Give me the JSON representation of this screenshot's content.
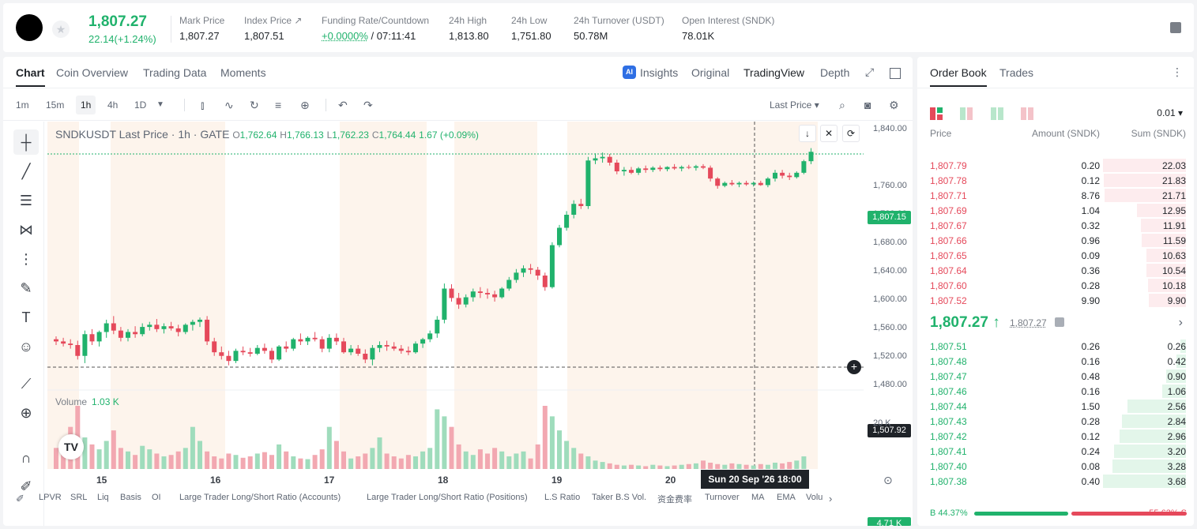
{
  "header": {
    "price": "1,807.27",
    "change": "22.14(+1.24%)",
    "stats": [
      {
        "label": "Mark Price",
        "value": "1,807.27"
      },
      {
        "label": "Index Price ↗",
        "value": "1,807.51"
      },
      {
        "label": "Funding Rate/Countdown",
        "value_green": "+0.0000%",
        "value": "/ 07:11:41"
      },
      {
        "label": "24h High",
        "value": "1,813.80"
      },
      {
        "label": "24h Low",
        "value": "1,751.80"
      },
      {
        "label": "24h Turnover (USDT)",
        "value": "50.78M"
      },
      {
        "label": "Open Interest (SNDK)",
        "value": "78.01K"
      }
    ]
  },
  "chart_tabs": [
    "Chart",
    "Coin Overview",
    "Trading Data",
    "Moments"
  ],
  "chart_views": {
    "insights": "Insights",
    "original": "Original",
    "tradingview": "TradingView",
    "depth": "Depth"
  },
  "timeframes": [
    "1m",
    "15m",
    "1h",
    "4h",
    "1D"
  ],
  "price_type": "Last Price",
  "legend": {
    "title": "SNDKUSDT Last Price · 1h · GATE",
    "o_label": "O",
    "o": "1,762.64",
    "h_label": "H",
    "h": "1,766.13",
    "l_label": "L",
    "l": "1,762.23",
    "c_label": "C",
    "c": "1,764.44",
    "chg": "1.67 (+0.09%)"
  },
  "volume_legend": {
    "label": "Volume",
    "value": "1.03 K"
  },
  "y_ticks": [
    "1,840.00",
    "1,760.00",
    "1,720.00",
    "1,680.00",
    "1,640.00",
    "1,600.00",
    "1,560.00",
    "1,520.00",
    "1,480.00"
  ],
  "y_last": "1,807.15",
  "y_cross": "1,507.92",
  "vol_ticks": [
    "20 K"
  ],
  "vol_last": "4.71 K",
  "x_ticks": [
    "15",
    "16",
    "17",
    "18",
    "19",
    "20"
  ],
  "x_cross": "Sun 20 Sep '26    18:00",
  "indicators": [
    "LPVR",
    "SRL",
    "Liq",
    "Basis",
    "OI",
    "Large Trader Long/Short Ratio (Accounts)",
    "Large Trader Long/Short Ratio (Positions)",
    "L.S Ratio",
    "Taker B.S Vol.",
    "资金费率",
    "Turnover",
    "MA",
    "EMA",
    "Volu"
  ],
  "chart_data": {
    "type": "candlestick",
    "series_name": "SNDKUSDT",
    "ylim": [
      1480,
      1840
    ],
    "x_ticks": [
      "15",
      "16",
      "17",
      "18",
      "19",
      "20"
    ],
    "candles": [
      [
        1548,
        1552,
        1540,
        1545
      ],
      [
        1545,
        1550,
        1538,
        1542
      ],
      [
        1542,
        1548,
        1535,
        1540
      ],
      [
        1540,
        1546,
        1520,
        1525
      ],
      [
        1525,
        1560,
        1515,
        1555
      ],
      [
        1555,
        1562,
        1540,
        1545
      ],
      [
        1545,
        1560,
        1538,
        1558
      ],
      [
        1558,
        1575,
        1550,
        1570
      ],
      [
        1570,
        1580,
        1555,
        1560
      ],
      [
        1560,
        1565,
        1545,
        1550
      ],
      [
        1550,
        1562,
        1545,
        1558
      ],
      [
        1558,
        1566,
        1550,
        1555
      ],
      [
        1555,
        1570,
        1552,
        1565
      ],
      [
        1565,
        1572,
        1560,
        1568
      ],
      [
        1568,
        1576,
        1558,
        1562
      ],
      [
        1562,
        1570,
        1556,
        1566
      ],
      [
        1566,
        1572,
        1560,
        1563
      ],
      [
        1563,
        1568,
        1552,
        1558
      ],
      [
        1558,
        1570,
        1555,
        1568
      ],
      [
        1568,
        1575,
        1560,
        1572
      ],
      [
        1572,
        1578,
        1565,
        1575
      ],
      [
        1575,
        1580,
        1540,
        1545
      ],
      [
        1545,
        1550,
        1525,
        1530
      ],
      [
        1530,
        1538,
        1520,
        1525
      ],
      [
        1525,
        1532,
        1512,
        1518
      ],
      [
        1518,
        1535,
        1515,
        1532
      ],
      [
        1532,
        1538,
        1526,
        1530
      ],
      [
        1530,
        1536,
        1524,
        1528
      ],
      [
        1528,
        1540,
        1526,
        1536
      ],
      [
        1536,
        1542,
        1528,
        1532
      ],
      [
        1532,
        1536,
        1515,
        1520
      ],
      [
        1520,
        1540,
        1518,
        1538
      ],
      [
        1538,
        1545,
        1530,
        1535
      ],
      [
        1535,
        1550,
        1532,
        1548
      ],
      [
        1548,
        1556,
        1540,
        1545
      ],
      [
        1545,
        1552,
        1540,
        1550
      ],
      [
        1550,
        1558,
        1545,
        1548
      ],
      [
        1548,
        1552,
        1530,
        1535
      ],
      [
        1535,
        1555,
        1530,
        1550
      ],
      [
        1550,
        1556,
        1540,
        1545
      ],
      [
        1545,
        1550,
        1528,
        1530
      ],
      [
        1530,
        1540,
        1526,
        1535
      ],
      [
        1535,
        1540,
        1525,
        1528
      ],
      [
        1528,
        1534,
        1515,
        1520
      ],
      [
        1520,
        1540,
        1512,
        1536
      ],
      [
        1536,
        1545,
        1530,
        1540
      ],
      [
        1540,
        1546,
        1532,
        1538
      ],
      [
        1538,
        1544,
        1532,
        1535
      ],
      [
        1535,
        1540,
        1528,
        1532
      ],
      [
        1532,
        1538,
        1526,
        1530
      ],
      [
        1530,
        1545,
        1528,
        1542
      ],
      [
        1542,
        1550,
        1536,
        1548
      ],
      [
        1548,
        1560,
        1544,
        1556
      ],
      [
        1556,
        1580,
        1550,
        1575
      ],
      [
        1575,
        1625,
        1570,
        1618
      ],
      [
        1618,
        1624,
        1600,
        1605
      ],
      [
        1605,
        1612,
        1590,
        1596
      ],
      [
        1596,
        1610,
        1592,
        1606
      ],
      [
        1606,
        1618,
        1600,
        1614
      ],
      [
        1614,
        1620,
        1605,
        1612
      ],
      [
        1612,
        1618,
        1604,
        1610
      ],
      [
        1610,
        1615,
        1600,
        1606
      ],
      [
        1606,
        1620,
        1604,
        1618
      ],
      [
        1618,
        1634,
        1615,
        1630
      ],
      [
        1630,
        1645,
        1626,
        1640
      ],
      [
        1640,
        1650,
        1634,
        1646
      ],
      [
        1646,
        1652,
        1638,
        1644
      ],
      [
        1644,
        1648,
        1630,
        1636
      ],
      [
        1636,
        1640,
        1615,
        1620
      ],
      [
        1620,
        1682,
        1618,
        1678
      ],
      [
        1678,
        1706,
        1675,
        1702
      ],
      [
        1702,
        1725,
        1698,
        1720
      ],
      [
        1720,
        1740,
        1715,
        1735
      ],
      [
        1735,
        1742,
        1728,
        1732
      ],
      [
        1732,
        1800,
        1728,
        1795
      ],
      [
        1795,
        1805,
        1790,
        1798
      ],
      [
        1798,
        1806,
        1792,
        1800
      ],
      [
        1800,
        1804,
        1788,
        1792
      ],
      [
        1792,
        1796,
        1776,
        1780
      ],
      [
        1780,
        1786,
        1774,
        1782
      ],
      [
        1782,
        1786,
        1776,
        1778
      ],
      [
        1778,
        1786,
        1775,
        1784
      ],
      [
        1784,
        1788,
        1778,
        1782
      ],
      [
        1782,
        1787,
        1779,
        1785
      ],
      [
        1785,
        1788,
        1780,
        1783
      ],
      [
        1783,
        1787,
        1780,
        1786
      ],
      [
        1786,
        1790,
        1782,
        1784
      ],
      [
        1784,
        1788,
        1780,
        1786
      ],
      [
        1786,
        1789,
        1783,
        1785
      ],
      [
        1785,
        1789,
        1781,
        1787
      ],
      [
        1787,
        1790,
        1783,
        1785
      ],
      [
        1785,
        1788,
        1766,
        1770
      ],
      [
        1770,
        1772,
        1756,
        1760
      ],
      [
        1760,
        1766,
        1758,
        1764
      ],
      [
        1764,
        1768,
        1760,
        1762
      ],
      [
        1762,
        1766,
        1758,
        1764
      ],
      [
        1764,
        1767,
        1760,
        1762
      ],
      [
        1762,
        1766,
        1759,
        1764
      ],
      [
        1764,
        1767,
        1760,
        1761
      ],
      [
        1761,
        1772,
        1758,
        1770
      ],
      [
        1770,
        1782,
        1766,
        1778
      ],
      [
        1778,
        1782,
        1770,
        1774
      ],
      [
        1774,
        1778,
        1768,
        1772
      ],
      [
        1772,
        1780,
        1770,
        1778
      ],
      [
        1778,
        1796,
        1776,
        1794
      ],
      [
        1794,
        1812,
        1790,
        1807
      ]
    ],
    "volumes": [
      30,
      22,
      60,
      90,
      45,
      35,
      28,
      40,
      55,
      30,
      25,
      20,
      33,
      28,
      22,
      18,
      20,
      25,
      30,
      60,
      40,
      25,
      18,
      15,
      22,
      20,
      16,
      18,
      22,
      24,
      20,
      35,
      25,
      18,
      15,
      14,
      20,
      28,
      60,
      40,
      25,
      15,
      18,
      22,
      30,
      45,
      22,
      18,
      15,
      20,
      18,
      25,
      30,
      85,
      75,
      60,
      35,
      25,
      20,
      28,
      22,
      30,
      25,
      18,
      22,
      25,
      15,
      35,
      90,
      75,
      55,
      40,
      30,
      22,
      18,
      12,
      10,
      8,
      6,
      5,
      6,
      5,
      4,
      6,
      5,
      4,
      5,
      6,
      7,
      8,
      12,
      9,
      7,
      6,
      8,
      7,
      6,
      5,
      7,
      6,
      9,
      8,
      10,
      12,
      18
    ]
  },
  "orderbook": {
    "tabs": [
      "Order Book",
      "Trades"
    ],
    "tick": "0.01",
    "cols": {
      "price": "Price",
      "amount": "Amount (SNDK)",
      "sum": "Sum (SNDK)"
    },
    "asks": [
      {
        "p": "1,807.79",
        "a": "0.20",
        "s": "22.03",
        "w": 1.0
      },
      {
        "p": "1,807.78",
        "a": "0.12",
        "s": "21.83",
        "w": 0.99
      },
      {
        "p": "1,807.71",
        "a": "8.76",
        "s": "21.71",
        "w": 0.985
      },
      {
        "p": "1,807.69",
        "a": "1.04",
        "s": "12.95",
        "w": 0.59
      },
      {
        "p": "1,807.67",
        "a": "0.32",
        "s": "11.91",
        "w": 0.54
      },
      {
        "p": "1,807.66",
        "a": "0.96",
        "s": "11.59",
        "w": 0.53
      },
      {
        "p": "1,807.65",
        "a": "0.09",
        "s": "10.63",
        "w": 0.48
      },
      {
        "p": "1,807.64",
        "a": "0.36",
        "s": "10.54",
        "w": 0.48
      },
      {
        "p": "1,807.60",
        "a": "0.28",
        "s": "10.18",
        "w": 0.46
      },
      {
        "p": "1,807.52",
        "a": "9.90",
        "s": "9.90",
        "w": 0.45
      }
    ],
    "mid_price": "1,807.27 ↑",
    "mark": "1,807.27",
    "bids": [
      {
        "p": "1,807.51",
        "a": "0.26",
        "s": "0.26",
        "w": 0.07
      },
      {
        "p": "1,807.48",
        "a": "0.16",
        "s": "0.42",
        "w": 0.11
      },
      {
        "p": "1,807.47",
        "a": "0.48",
        "s": "0.90",
        "w": 0.24
      },
      {
        "p": "1,807.46",
        "a": "0.16",
        "s": "1.06",
        "w": 0.29
      },
      {
        "p": "1,807.44",
        "a": "1.50",
        "s": "2.56",
        "w": 0.7
      },
      {
        "p": "1,807.43",
        "a": "0.28",
        "s": "2.84",
        "w": 0.77
      },
      {
        "p": "1,807.42",
        "a": "0.12",
        "s": "2.96",
        "w": 0.8
      },
      {
        "p": "1,807.41",
        "a": "0.24",
        "s": "3.20",
        "w": 0.87
      },
      {
        "p": "1,807.40",
        "a": "0.08",
        "s": "3.28",
        "w": 0.89
      },
      {
        "p": "1,807.38",
        "a": "0.40",
        "s": "3.68",
        "w": 1.0
      }
    ],
    "buy_pct": "B 44.37%",
    "sell_pct": "55.63% S",
    "buy_ratio": 0.4437
  }
}
